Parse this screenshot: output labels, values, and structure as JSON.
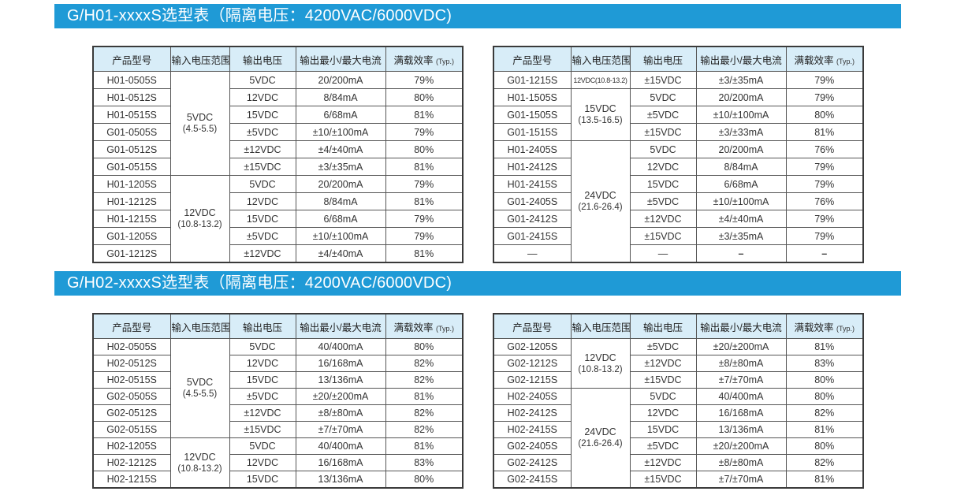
{
  "colors": {
    "bar_bg": "#1f9ad6",
    "bar_text": "#ffffff",
    "thead_bg": "#d8edf8",
    "cell_border": "#555555",
    "outer_border": "#3a3a3a",
    "text": "#333333"
  },
  "columns": [
    "产品型号",
    "输入电压范围",
    "输出电压",
    "输出最小/最大电流",
    "满载效率"
  ],
  "column_keys": [
    "model",
    "vin",
    "vout",
    "current",
    "eff"
  ],
  "eff_note": "(Typ.)",
  "sections": [
    {
      "title": "G/H01-xxxxS选型表（隔离电压：4200VAC/6000VDC)",
      "tables": [
        {
          "rows": [
            {
              "model": "H01-0505S",
              "vin": {
                "label": "5VDC",
                "range": "(4.5-5.5)",
                "span": 6
              },
              "vout": "5VDC",
              "current": "20/200mA",
              "eff": "79%"
            },
            {
              "model": "H01-0512S",
              "vout": "12VDC",
              "current": "8/84mA",
              "eff": "80%"
            },
            {
              "model": "H01-0515S",
              "vout": "15VDC",
              "current": "6/68mA",
              "eff": "81%"
            },
            {
              "model": "G01-0505S",
              "vout": "±5VDC",
              "current": "±10/±100mA",
              "eff": "79%"
            },
            {
              "model": "G01-0512S",
              "vout": "±12VDC",
              "current": "±4/±40mA",
              "eff": "80%"
            },
            {
              "model": "G01-0515S",
              "vout": "±15VDC",
              "current": "±3/±35mA",
              "eff": "81%"
            },
            {
              "model": "H01-1205S",
              "vin": {
                "label": "12VDC",
                "range": "(10.8-13.2)",
                "span": 5
              },
              "vout": "5VDC",
              "current": "20/200mA",
              "eff": "79%"
            },
            {
              "model": "H01-1212S",
              "vout": "12VDC",
              "current": "8/84mA",
              "eff": "81%"
            },
            {
              "model": "H01-1215S",
              "vout": "15VDC",
              "current": "6/68mA",
              "eff": "79%"
            },
            {
              "model": "G01-1205S",
              "vout": "±5VDC",
              "current": "±10/±100mA",
              "eff": "79%"
            },
            {
              "model": "G01-1212S",
              "vout": "±12VDC",
              "current": "±4/±40mA",
              "eff": "81%"
            }
          ]
        },
        {
          "rows": [
            {
              "model": "G01-1215S",
              "vin": {
                "label": "12VDC(10.8-13.2)",
                "span": 1,
                "compact": true
              },
              "vout": "±15VDC",
              "current": "±3/±35mA",
              "eff": "79%"
            },
            {
              "model": "H01-1505S",
              "vin": {
                "label": "15VDC",
                "range": "(13.5-16.5)",
                "span": 3
              },
              "vout": "5VDC",
              "current": "20/200mA",
              "eff": "79%"
            },
            {
              "model": "G01-1505S",
              "vout": "±5VDC",
              "current": "±10/±100mA",
              "eff": "80%"
            },
            {
              "model": "G01-1515S",
              "vout": "±15VDC",
              "current": "±3/±33mA",
              "eff": "81%"
            },
            {
              "model": "H01-2405S",
              "vin": {
                "label": "24VDC",
                "range": "(21.6-26.4)",
                "span": 7
              },
              "vout": "5VDC",
              "current": "20/200mA",
              "eff": "76%"
            },
            {
              "model": "H01-2412S",
              "vout": "12VDC",
              "current": "8/84mA",
              "eff": "79%"
            },
            {
              "model": "H01-2415S",
              "vout": "15VDC",
              "current": "6/68mA",
              "eff": "79%"
            },
            {
              "model": "G01-2405S",
              "vout": "±5VDC",
              "current": "±10/±100mA",
              "eff": "76%"
            },
            {
              "model": "G01-2412S",
              "vout": "±12VDC",
              "current": "±4/±40mA",
              "eff": "79%"
            },
            {
              "model": "G01-2415S",
              "vout": "±15VDC",
              "current": "±3/±35mA",
              "eff": "79%"
            },
            {
              "model": "—",
              "vout": "—",
              "current": "–",
              "eff": "–",
              "dash_row": true
            }
          ]
        }
      ]
    },
    {
      "title": "G/H02-xxxxS选型表（隔离电压：4200VAC/6000VDC)",
      "tables": [
        {
          "rows": [
            {
              "model": "H02-0505S",
              "vin": {
                "label": "5VDC",
                "range": "(4.5-5.5)",
                "span": 6
              },
              "vout": "5VDC",
              "current": "40/400mA",
              "eff": "80%"
            },
            {
              "model": "H02-0512S",
              "vout": "12VDC",
              "current": "16/168mA",
              "eff": "82%"
            },
            {
              "model": "H02-0515S",
              "vout": "15VDC",
              "current": "13/136mA",
              "eff": "82%"
            },
            {
              "model": "G02-0505S",
              "vout": "±5VDC",
              "current": "±20/±200mA",
              "eff": "81%"
            },
            {
              "model": "G02-0512S",
              "vout": "±12VDC",
              "current": "±8/±80mA",
              "eff": "82%"
            },
            {
              "model": "G02-0515S",
              "vout": "±15VDC",
              "current": "±7/±70mA",
              "eff": "82%"
            },
            {
              "model": "H02-1205S",
              "vin": {
                "label": "12VDC",
                "range": "(10.8-13.2)",
                "span": 3
              },
              "vout": "5VDC",
              "current": "40/400mA",
              "eff": "81%"
            },
            {
              "model": "H02-1212S",
              "vout": "12VDC",
              "current": "16/168mA",
              "eff": "83%"
            },
            {
              "model": "H02-1215S",
              "vout": "15VDC",
              "current": "13/136mA",
              "eff": "80%"
            }
          ]
        },
        {
          "rows": [
            {
              "model": "G02-1205S",
              "vin": {
                "label": "12VDC",
                "range": "(10.8-13.2)",
                "span": 3
              },
              "vout": "±5VDC",
              "current": "±20/±200mA",
              "eff": "81%"
            },
            {
              "model": "G02-1212S",
              "vout": "±12VDC",
              "current": "±8/±80mA",
              "eff": "83%"
            },
            {
              "model": "G02-1215S",
              "vout": "±15VDC",
              "current": "±7/±70mA",
              "eff": "80%"
            },
            {
              "model": "H02-2405S",
              "vin": {
                "label": "24VDC",
                "range": "(21.6-26.4)",
                "span": 6
              },
              "vout": "5VDC",
              "current": "40/400mA",
              "eff": "80%"
            },
            {
              "model": "H02-2412S",
              "vout": "12VDC",
              "current": "16/168mA",
              "eff": "82%"
            },
            {
              "model": "H02-2415S",
              "vout": "15VDC",
              "current": "13/136mA",
              "eff": "81%"
            },
            {
              "model": "G02-2405S",
              "vout": "±5VDC",
              "current": "±20/±200mA",
              "eff": "80%"
            },
            {
              "model": "G02-2412S",
              "vout": "±12VDC",
              "current": "±8/±80mA",
              "eff": "82%"
            },
            {
              "model": "G02-2415S",
              "vout": "±15VDC",
              "current": "±7/±70mA",
              "eff": "81%"
            }
          ]
        }
      ]
    }
  ]
}
